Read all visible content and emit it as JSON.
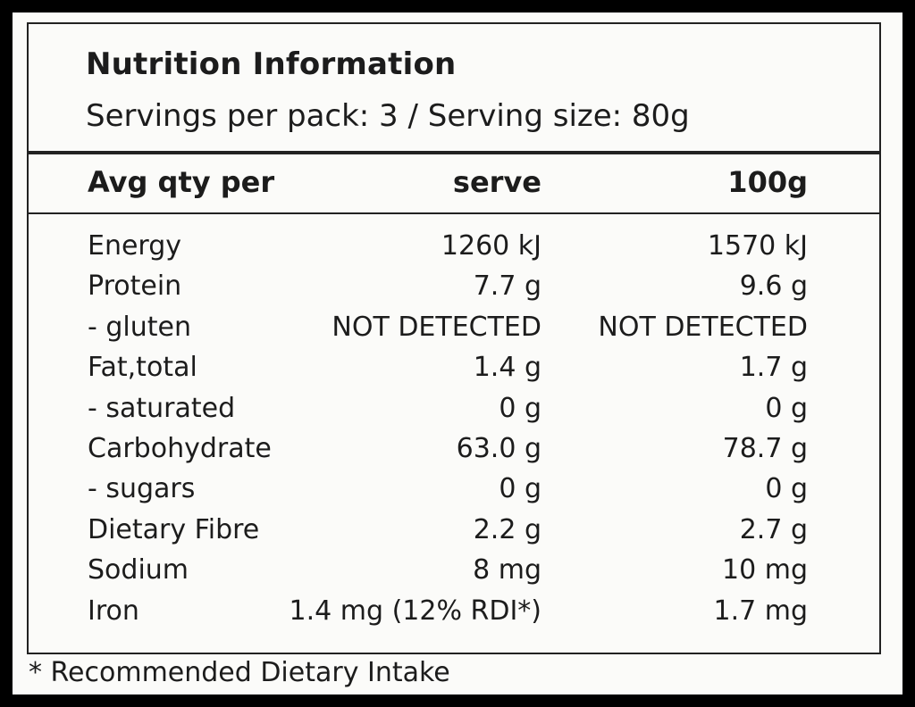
{
  "panel": {
    "title": "Nutrition Information",
    "servings": "Servings per pack: 3 / Serving size: 80g"
  },
  "header": {
    "col_label": "Avg qty per",
    "col_serve": "serve",
    "col_100g": "100g"
  },
  "rows": [
    {
      "name": "Energy",
      "serve": "1260 kJ",
      "per100": "1570 kJ"
    },
    {
      "name": "Protein",
      "serve": "7.7 g",
      "per100": "9.6 g"
    },
    {
      "name": "- gluten",
      "serve": "NOT DETECTED",
      "per100": "NOT DETECTED"
    },
    {
      "name": "Fat,total",
      "serve": "1.4 g",
      "per100": "1.7 g"
    },
    {
      "name": "- saturated",
      "serve": "0 g",
      "per100": "0 g"
    },
    {
      "name": "Carbohydrate",
      "serve": "63.0 g",
      "per100": "78.7 g"
    },
    {
      "name": "- sugars",
      "serve": "0 g",
      "per100": "0 g"
    },
    {
      "name": "Dietary Fibre",
      "serve": "2.2 g",
      "per100": "2.7 g"
    },
    {
      "name": "Sodium",
      "serve": "8 mg",
      "per100": "10 mg"
    },
    {
      "name": "Iron",
      "serve": "1.4 mg (12% RDI*)",
      "per100": "1.7 mg"
    }
  ],
  "footnote": "* Recommended Dietary Intake"
}
